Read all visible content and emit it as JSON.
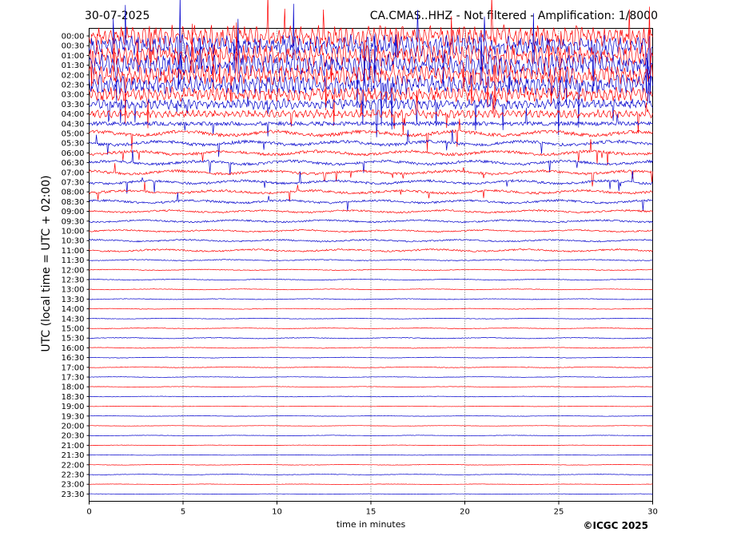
{
  "header": {
    "date": "30-07-2025",
    "title": "CA.CMAS..HHZ - Not filtered - Amplification: 1/8000"
  },
  "footer": {
    "copyright": "©ICGC 2025"
  },
  "colors": {
    "odd_trace": "#ff0000",
    "even_trace": "#0000cc",
    "axes": "#000000",
    "grid": "#000000"
  },
  "chart_data": {
    "type": "line",
    "subtype": "helicorder",
    "title": "CA.CMAS..HHZ - Not filtered - Amplification: 1/8000",
    "xlabel": "time in minutes",
    "ylabel": "UTC (local time = UTC + 02:00)",
    "xlim": [
      0,
      30
    ],
    "xticks": [
      0,
      5,
      10,
      15,
      20,
      25,
      30
    ],
    "vertical_gridlines_at": [
      5,
      10,
      15,
      20,
      25
    ],
    "grid": "vertical dotted",
    "row_labels": [
      "00:00",
      "00:30",
      "01:00",
      "01:30",
      "02:00",
      "02:30",
      "03:00",
      "03:30",
      "04:00",
      "04:30",
      "05:00",
      "05:30",
      "06:00",
      "06:30",
      "07:00",
      "07:30",
      "08:00",
      "08:30",
      "09:00",
      "09:30",
      "10:00",
      "10:30",
      "11:00",
      "11:30",
      "12:00",
      "12:30",
      "13:00",
      "13:30",
      "14:00",
      "14:30",
      "15:00",
      "15:30",
      "16:00",
      "16:30",
      "17:00",
      "17:30",
      "18:00",
      "18:30",
      "19:00",
      "19:30",
      "20:00",
      "20:30",
      "21:00",
      "21:30",
      "22:00",
      "22:30",
      "23:00",
      "23:30"
    ],
    "trace_color_pattern": [
      "red",
      "blue"
    ],
    "relative_amplitude_by_row": [
      9,
      9,
      9,
      9,
      8.5,
      8,
      6,
      4.5,
      3.5,
      3,
      2.6,
      2.3,
      2.1,
      2,
      1.9,
      1.8,
      1.7,
      1.6,
      1.3,
      1.2,
      1,
      1.1,
      1.2,
      0.6,
      0.5,
      0.45,
      0.4,
      0.4,
      0.35,
      0.35,
      0.4,
      0.5,
      0.4,
      0.35,
      0.45,
      0.3,
      0.3,
      0.3,
      0.25,
      0.25,
      0.25,
      0.3,
      0.25,
      0.25,
      0.3,
      0.35,
      0.25,
      0.25
    ]
  }
}
